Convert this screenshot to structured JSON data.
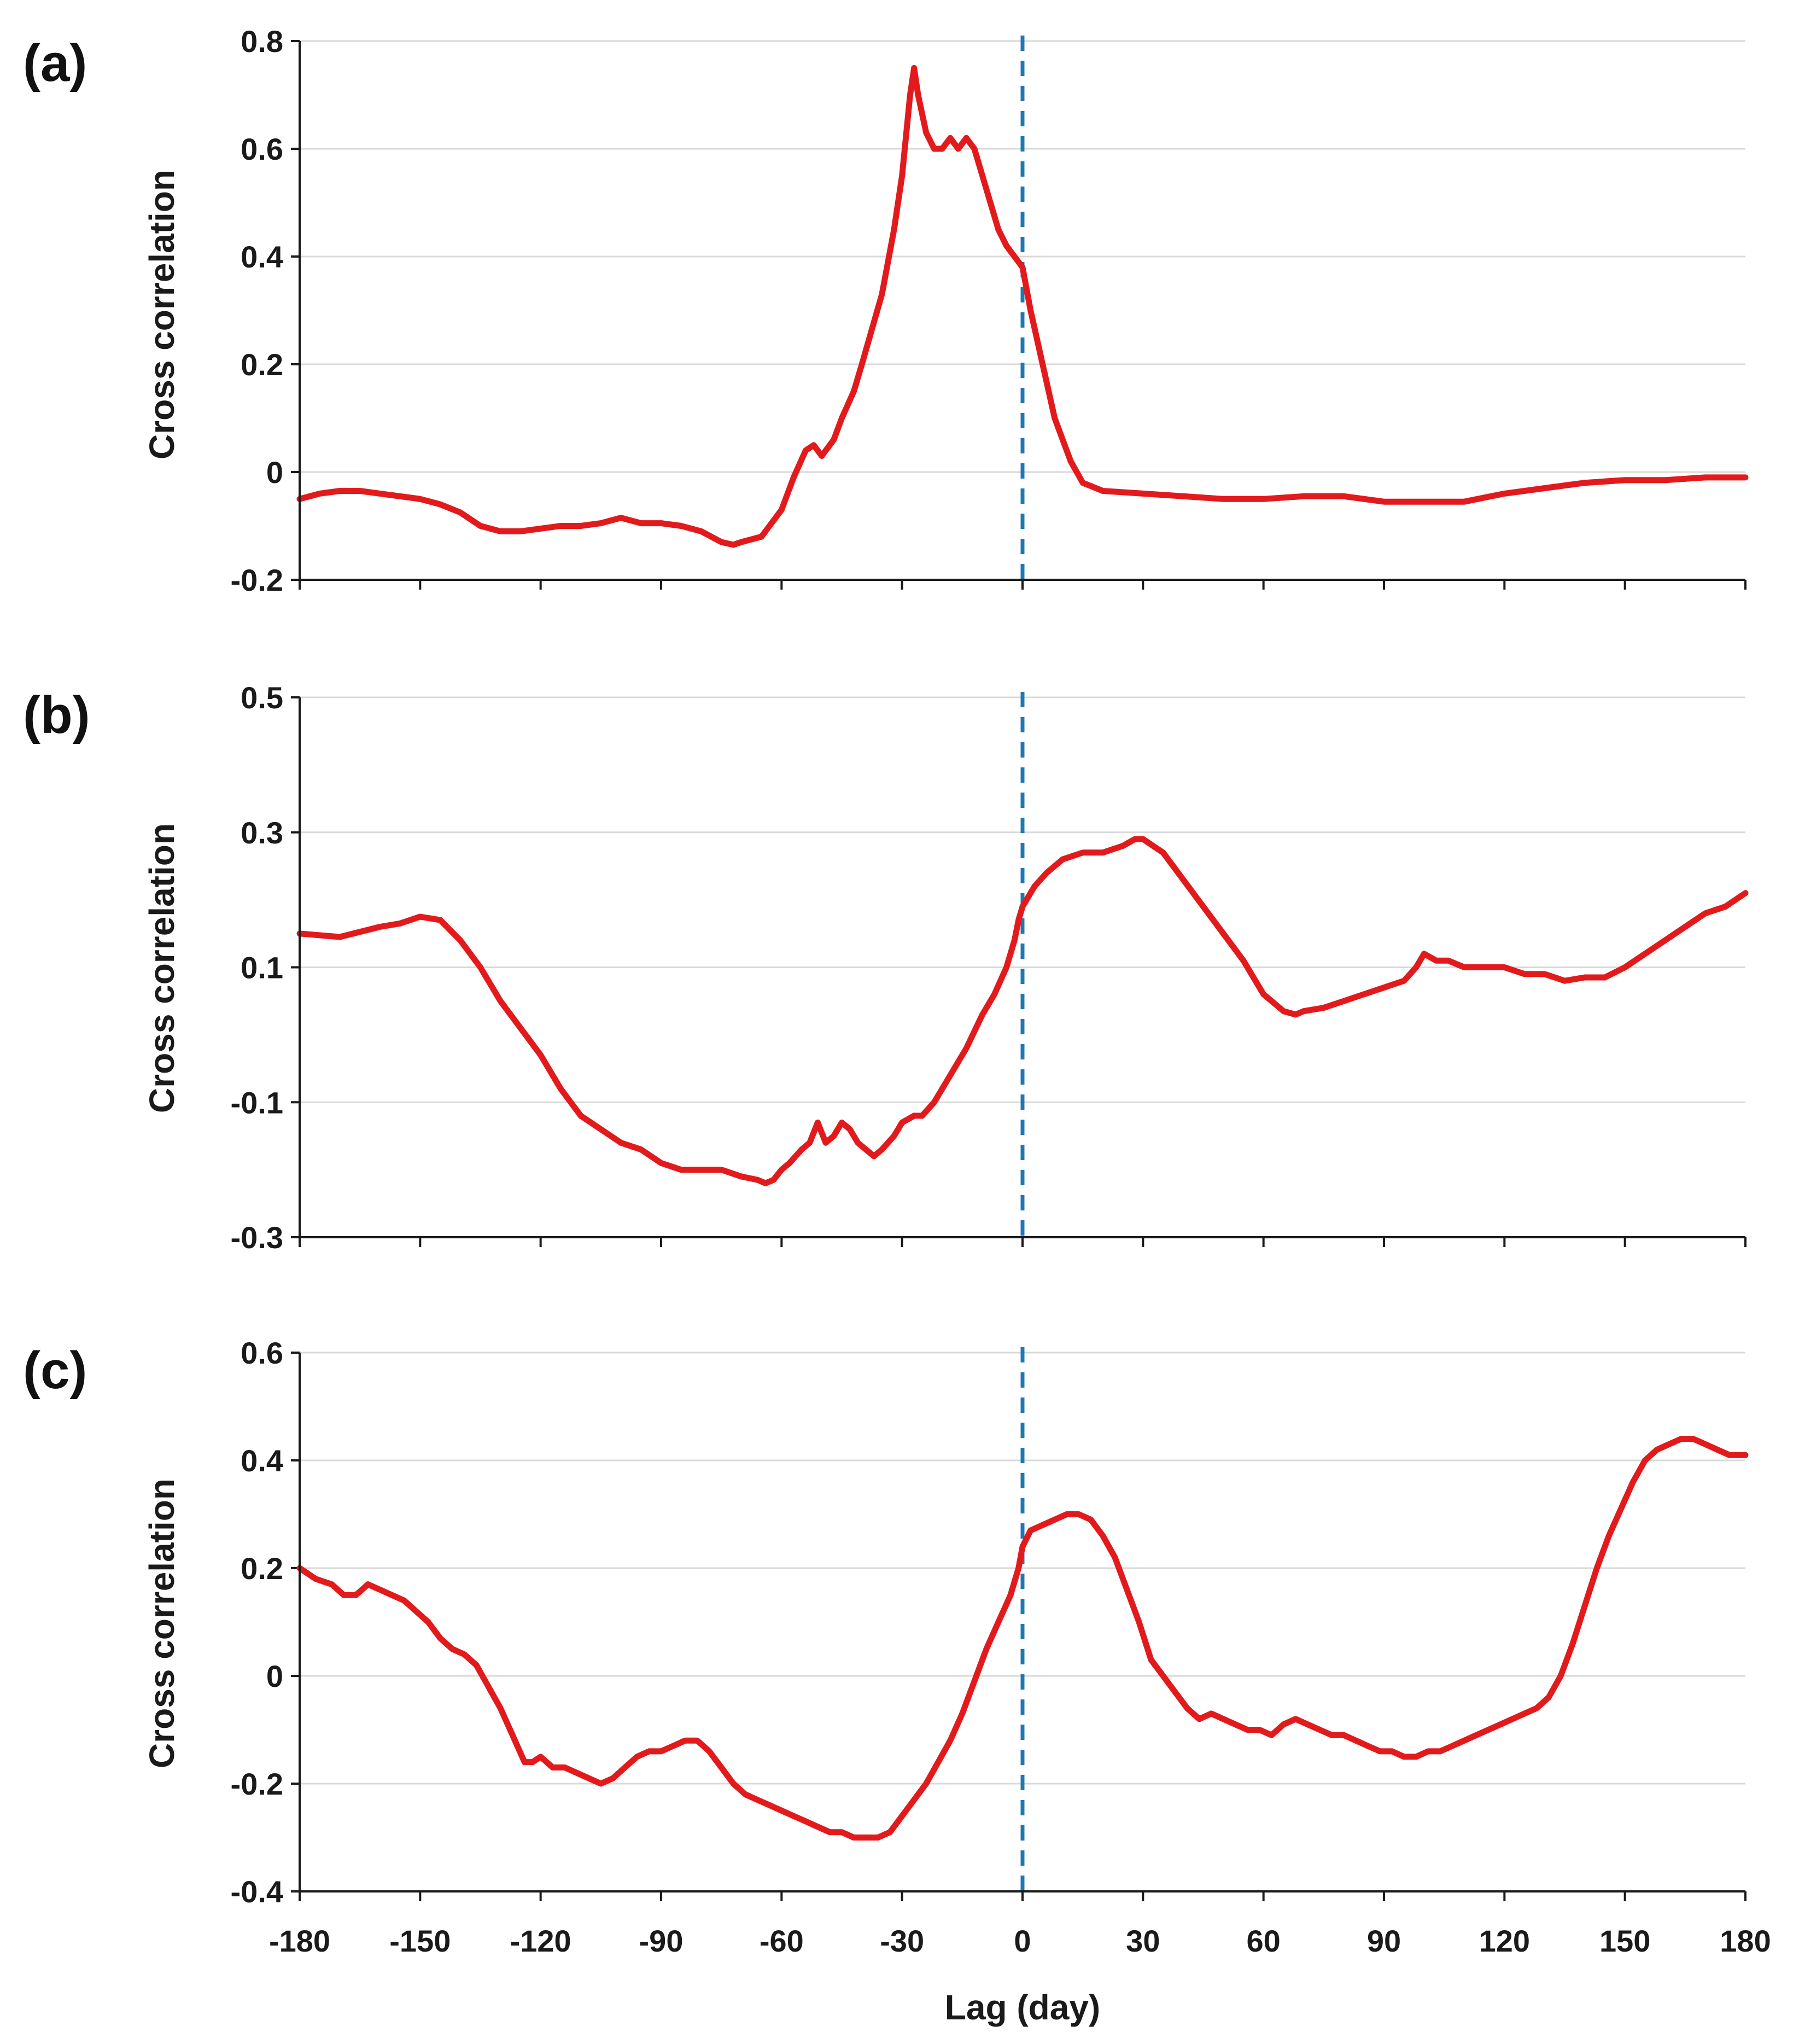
{
  "chart_data": [
    {
      "panel_label": "(a)",
      "type": "line",
      "ylabel": "Cross correlation",
      "ylim": [
        -0.2,
        0.8
      ],
      "yticks": [
        "-0.2",
        "0",
        "0.2",
        "0.4",
        "0.6",
        "0.8"
      ],
      "ytick_values": [
        -0.2,
        0,
        0.2,
        0.4,
        0.6,
        0.8
      ],
      "xlim": [
        -180,
        180
      ],
      "grid": true,
      "reference_line_x": 0,
      "series": [
        {
          "name": "cross correlation",
          "color": "#e31a1c",
          "x": [
            -180,
            -175,
            -170,
            -165,
            -160,
            -155,
            -150,
            -145,
            -140,
            -135,
            -130,
            -125,
            -120,
            -115,
            -110,
            -105,
            -100,
            -95,
            -90,
            -85,
            -80,
            -75,
            -72,
            -70,
            -65,
            -60,
            -57,
            -54,
            -52,
            -50,
            -47,
            -45,
            -42,
            -40,
            -35,
            -32,
            -30,
            -28,
            -27,
            -26,
            -24,
            -22,
            -20,
            -18,
            -16,
            -14,
            -12,
            -10,
            -8,
            -6,
            -4,
            -2,
            0,
            2,
            5,
            8,
            10,
            12,
            15,
            20,
            30,
            40,
            50,
            60,
            70,
            80,
            90,
            100,
            110,
            120,
            130,
            140,
            150,
            160,
            170,
            180
          ],
          "y": [
            -0.05,
            -0.04,
            -0.035,
            -0.035,
            -0.04,
            -0.045,
            -0.05,
            -0.06,
            -0.075,
            -0.1,
            -0.11,
            -0.11,
            -0.105,
            -0.1,
            -0.1,
            -0.095,
            -0.085,
            -0.095,
            -0.095,
            -0.1,
            -0.11,
            -0.13,
            -0.135,
            -0.13,
            -0.12,
            -0.07,
            -0.01,
            0.04,
            0.05,
            0.03,
            0.06,
            0.1,
            0.15,
            0.2,
            0.33,
            0.45,
            0.55,
            0.7,
            0.75,
            0.7,
            0.63,
            0.6,
            0.6,
            0.62,
            0.6,
            0.62,
            0.6,
            0.55,
            0.5,
            0.45,
            0.42,
            0.4,
            0.38,
            0.3,
            0.2,
            0.1,
            0.06,
            0.02,
            -0.02,
            -0.035,
            -0.04,
            -0.045,
            -0.05,
            -0.05,
            -0.045,
            -0.045,
            -0.055,
            -0.055,
            -0.055,
            -0.04,
            -0.03,
            -0.02,
            -0.015,
            -0.015,
            -0.01,
            -0.01
          ]
        }
      ]
    },
    {
      "panel_label": "(b)",
      "type": "line",
      "ylabel": "Cross correlation",
      "ylim": [
        -0.3,
        0.5
      ],
      "yticks": [
        "-0.3",
        "-0.1",
        "0.1",
        "0.3",
        "0.5"
      ],
      "ytick_values": [
        -0.3,
        -0.1,
        0.1,
        0.3,
        0.5
      ],
      "xlim": [
        -180,
        180
      ],
      "grid": true,
      "reference_line_x": 0,
      "series": [
        {
          "name": "cross correlation",
          "color": "#e31a1c",
          "x": [
            -180,
            -170,
            -160,
            -155,
            -150,
            -145,
            -140,
            -135,
            -130,
            -125,
            -120,
            -115,
            -110,
            -105,
            -100,
            -95,
            -90,
            -85,
            -80,
            -75,
            -70,
            -66,
            -64,
            -62,
            -60,
            -58,
            -55,
            -53,
            -51,
            -49,
            -47,
            -45,
            -43,
            -41,
            -39,
            -37,
            -35,
            -32,
            -30,
            -27,
            -25,
            -22,
            -18,
            -14,
            -10,
            -7,
            -4,
            -2,
            -1,
            0,
            3,
            6,
            10,
            15,
            20,
            25,
            28,
            30,
            35,
            40,
            45,
            50,
            55,
            60,
            65,
            68,
            70,
            75,
            80,
            85,
            90,
            95,
            98,
            100,
            103,
            106,
            110,
            115,
            120,
            125,
            130,
            135,
            140,
            145,
            150,
            155,
            160,
            165,
            170,
            175,
            180
          ],
          "y": [
            0.15,
            0.145,
            0.16,
            0.165,
            0.175,
            0.17,
            0.14,
            0.1,
            0.05,
            0.01,
            -0.03,
            -0.08,
            -0.12,
            -0.14,
            -0.16,
            -0.17,
            -0.19,
            -0.2,
            -0.2,
            -0.2,
            -0.21,
            -0.215,
            -0.22,
            -0.215,
            -0.2,
            -0.19,
            -0.17,
            -0.16,
            -0.13,
            -0.16,
            -0.15,
            -0.13,
            -0.14,
            -0.16,
            -0.17,
            -0.18,
            -0.17,
            -0.15,
            -0.13,
            -0.12,
            -0.12,
            -0.1,
            -0.06,
            -0.02,
            0.03,
            0.06,
            0.1,
            0.14,
            0.17,
            0.19,
            0.22,
            0.24,
            0.26,
            0.27,
            0.27,
            0.28,
            0.29,
            0.29,
            0.27,
            0.23,
            0.19,
            0.15,
            0.11,
            0.06,
            0.035,
            0.03,
            0.035,
            0.04,
            0.05,
            0.06,
            0.07,
            0.08,
            0.1,
            0.12,
            0.11,
            0.11,
            0.1,
            0.1,
            0.1,
            0.09,
            0.09,
            0.08,
            0.085,
            0.085,
            0.1,
            0.12,
            0.14,
            0.16,
            0.18,
            0.19,
            0.21
          ]
        }
      ]
    },
    {
      "panel_label": "(c)",
      "type": "line",
      "ylabel": "Cross correlation",
      "xlabel": "Lag (day)",
      "ylim": [
        -0.4,
        0.6
      ],
      "yticks": [
        "-0.4",
        "-0.2",
        "0",
        "0.2",
        "0.4",
        "0.6"
      ],
      "ytick_values": [
        -0.4,
        -0.2,
        0,
        0.2,
        0.4,
        0.6
      ],
      "xlim": [
        -180,
        180
      ],
      "xticks": [
        "-180",
        "-150",
        "-120",
        "-90",
        "-60",
        "-30",
        "0",
        "30",
        "60",
        "90",
        "120",
        "150",
        "180"
      ],
      "xtick_values": [
        -180,
        -150,
        -120,
        -90,
        -60,
        -30,
        0,
        30,
        60,
        90,
        120,
        150,
        180
      ],
      "grid": true,
      "reference_line_x": 0,
      "series": [
        {
          "name": "cross correlation",
          "color": "#e31a1c",
          "x": [
            -180,
            -176,
            -172,
            -169,
            -166,
            -163,
            -160,
            -157,
            -154,
            -151,
            -148,
            -145,
            -142,
            -139,
            -136,
            -133,
            -130,
            -127,
            -124,
            -122,
            -120,
            -117,
            -114,
            -111,
            -108,
            -105,
            -102,
            -99,
            -96,
            -93,
            -90,
            -87,
            -84,
            -81,
            -78,
            -75,
            -72,
            -69,
            -66,
            -63,
            -60,
            -57,
            -54,
            -51,
            -48,
            -45,
            -42,
            -39,
            -36,
            -33,
            -30,
            -27,
            -24,
            -21,
            -18,
            -15,
            -12,
            -9,
            -6,
            -3,
            -1,
            0,
            2,
            5,
            8,
            11,
            14,
            17,
            20,
            23,
            26,
            29,
            32,
            35,
            38,
            41,
            44,
            47,
            50,
            53,
            56,
            59,
            62,
            65,
            68,
            71,
            74,
            77,
            80,
            83,
            86,
            89,
            92,
            95,
            98,
            101,
            104,
            107,
            110,
            113,
            116,
            119,
            122,
            125,
            128,
            131,
            134,
            137,
            140,
            143,
            146,
            149,
            152,
            155,
            158,
            161,
            164,
            167,
            170,
            173,
            176,
            180
          ],
          "y": [
            0.2,
            0.18,
            0.17,
            0.15,
            0.15,
            0.17,
            0.16,
            0.15,
            0.14,
            0.12,
            0.1,
            0.07,
            0.05,
            0.04,
            0.02,
            -0.02,
            -0.06,
            -0.11,
            -0.16,
            -0.16,
            -0.15,
            -0.17,
            -0.17,
            -0.18,
            -0.19,
            -0.2,
            -0.19,
            -0.17,
            -0.15,
            -0.14,
            -0.14,
            -0.13,
            -0.12,
            -0.12,
            -0.14,
            -0.17,
            -0.2,
            -0.22,
            -0.23,
            -0.24,
            -0.25,
            -0.26,
            -0.27,
            -0.28,
            -0.29,
            -0.29,
            -0.3,
            -0.3,
            -0.3,
            -0.29,
            -0.26,
            -0.23,
            -0.2,
            -0.16,
            -0.12,
            -0.07,
            -0.01,
            0.05,
            0.1,
            0.15,
            0.2,
            0.24,
            0.27,
            0.28,
            0.29,
            0.3,
            0.3,
            0.29,
            0.26,
            0.22,
            0.16,
            0.1,
            0.03,
            0.0,
            -0.03,
            -0.06,
            -0.08,
            -0.07,
            -0.08,
            -0.09,
            -0.1,
            -0.1,
            -0.11,
            -0.09,
            -0.08,
            -0.09,
            -0.1,
            -0.11,
            -0.11,
            -0.12,
            -0.13,
            -0.14,
            -0.14,
            -0.15,
            -0.15,
            -0.14,
            -0.14,
            -0.13,
            -0.12,
            -0.11,
            -0.1,
            -0.09,
            -0.08,
            -0.07,
            -0.06,
            -0.04,
            0.0,
            0.06,
            0.13,
            0.2,
            0.26,
            0.31,
            0.36,
            0.4,
            0.42,
            0.43,
            0.44,
            0.44,
            0.43,
            0.42,
            0.41,
            0.41
          ]
        }
      ]
    }
  ],
  "colors": {
    "line": "#e31a1c",
    "reference_line": "#1f77b4",
    "grid": "#d9d9d9",
    "axis": "#1a1a1a"
  }
}
